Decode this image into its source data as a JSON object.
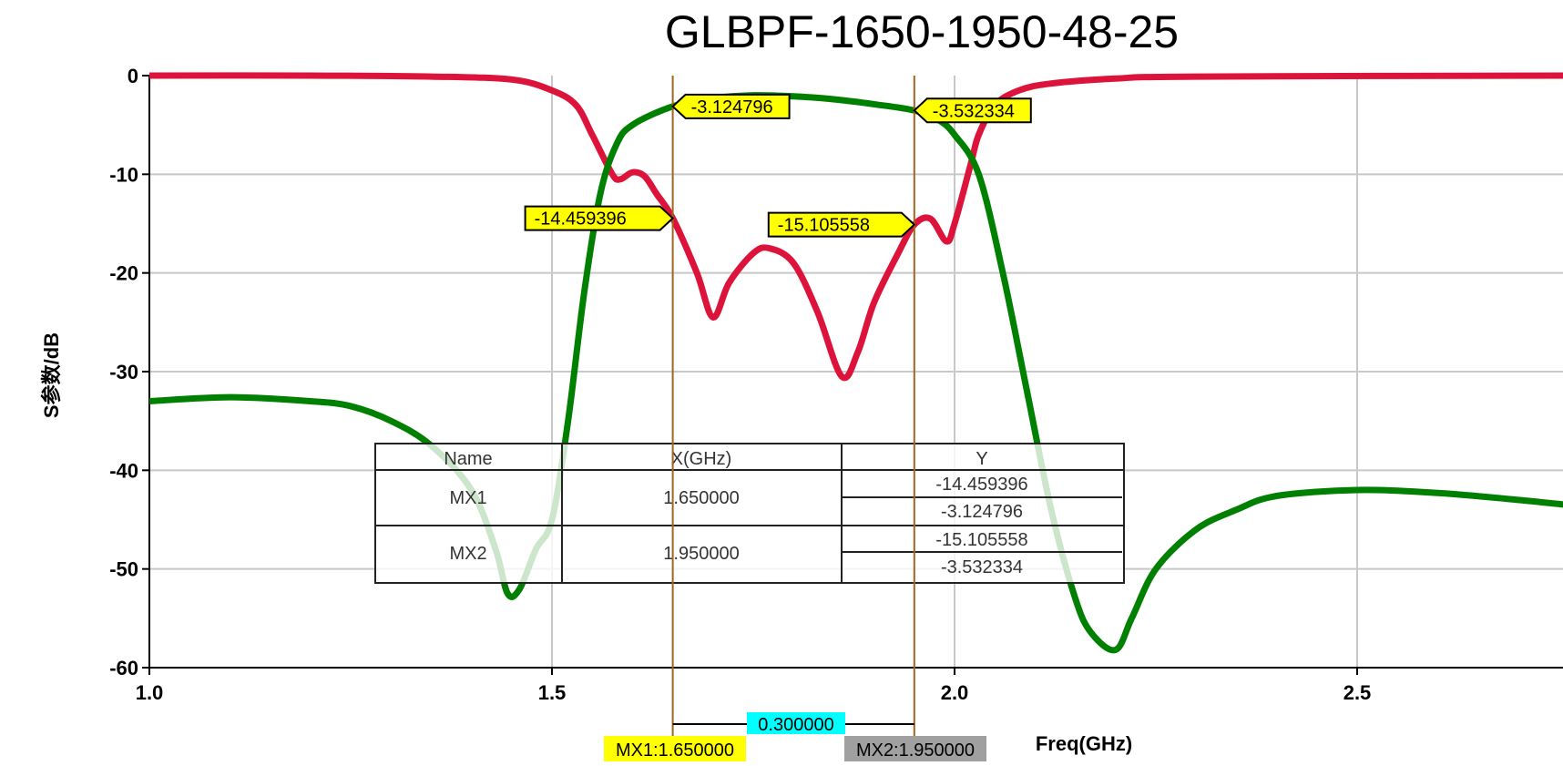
{
  "chart_data": {
    "type": "line",
    "title": "GLBPF-1650-1950-48-25",
    "xlabel": "Freq(GHz)",
    "ylabel": "S参数/dB",
    "xlim": [
      1.0,
      2.76
    ],
    "ylim": [
      -60,
      0
    ],
    "xticks": [
      "1.0",
      "1.5",
      "2.0",
      "2.5"
    ],
    "xtick_values": [
      1.0,
      1.5,
      2.0,
      2.5
    ],
    "yticks": [
      "0",
      "-10",
      "-20",
      "-30",
      "-40",
      "-50",
      "-60"
    ],
    "ytick_values": [
      0,
      -10,
      -20,
      -30,
      -40,
      -50,
      -60
    ],
    "grid": true,
    "series": [
      {
        "color": "#dc143c",
        "x": [
          1.0,
          1.2,
          1.35,
          1.45,
          1.5,
          1.53,
          1.55,
          1.575,
          1.585,
          1.6,
          1.615,
          1.63,
          1.65,
          1.68,
          1.7,
          1.72,
          1.75,
          1.77,
          1.8,
          1.83,
          1.86,
          1.88,
          1.9,
          1.93,
          1.95,
          1.97,
          1.99,
          2.0,
          2.02,
          2.03,
          2.05,
          2.08,
          2.12,
          2.2,
          2.3,
          2.76
        ],
        "y": [
          0,
          0,
          -0.1,
          -0.4,
          -1.5,
          -3,
          -6,
          -10,
          -10.5,
          -9.8,
          -10.2,
          -12,
          -14.459396,
          -20,
          -24.5,
          -21,
          -18,
          -17.5,
          -19,
          -24,
          -30.5,
          -28,
          -23,
          -18,
          -15.105558,
          -14.5,
          -16.8,
          -15,
          -9,
          -6,
          -3,
          -1.5,
          -0.8,
          -0.3,
          -0.1,
          0
        ]
      },
      {
        "color": "#008000",
        "x": [
          1.0,
          1.1,
          1.2,
          1.25,
          1.3,
          1.35,
          1.4,
          1.43,
          1.445,
          1.46,
          1.48,
          1.5,
          1.52,
          1.54,
          1.56,
          1.58,
          1.6,
          1.65,
          1.7,
          1.75,
          1.8,
          1.85,
          1.9,
          1.95,
          1.98,
          2.0,
          2.03,
          2.06,
          2.09,
          2.12,
          2.15,
          2.17,
          2.2,
          2.22,
          2.25,
          2.3,
          2.35,
          2.4,
          2.5,
          2.6,
          2.7,
          2.76
        ],
        "y": [
          -33,
          -32.6,
          -33,
          -33.5,
          -35,
          -37.5,
          -42,
          -48,
          -52.5,
          -52,
          -48,
          -45,
          -35,
          -22,
          -12,
          -7,
          -5,
          -3.124796,
          -2.3,
          -2,
          -2.1,
          -2.4,
          -2.9,
          -3.532334,
          -4.5,
          -6,
          -10,
          -20,
          -32,
          -44,
          -53,
          -56.5,
          -58.2,
          -55,
          -50,
          -46,
          -44,
          -42.6,
          -42,
          -42.3,
          -43,
          -43.5
        ]
      }
    ],
    "markers": [
      {
        "name": "MX1",
        "x": 1.65,
        "label": "MX1:1.650000",
        "x_text": "1.650000",
        "values": [
          "-14.459396",
          "-3.124796"
        ],
        "y": [
          -14.459396,
          -3.124796
        ]
      },
      {
        "name": "MX2",
        "x": 1.95,
        "label": "MX2:1.950000",
        "x_text": "1.950000",
        "values": [
          "-15.105558",
          "-3.532334"
        ],
        "y": [
          -15.105558,
          -3.532334
        ]
      }
    ],
    "delta_label": "0.300000",
    "marker_table": {
      "headers": [
        "Name",
        "X(GHz)",
        "Y"
      ]
    },
    "colors": {
      "marker_line": "#a0661e",
      "callout": "#ffff00",
      "delta": "#00ffff",
      "mx2_label": "#a0a0a0",
      "grid": "#c8c8c8"
    }
  }
}
